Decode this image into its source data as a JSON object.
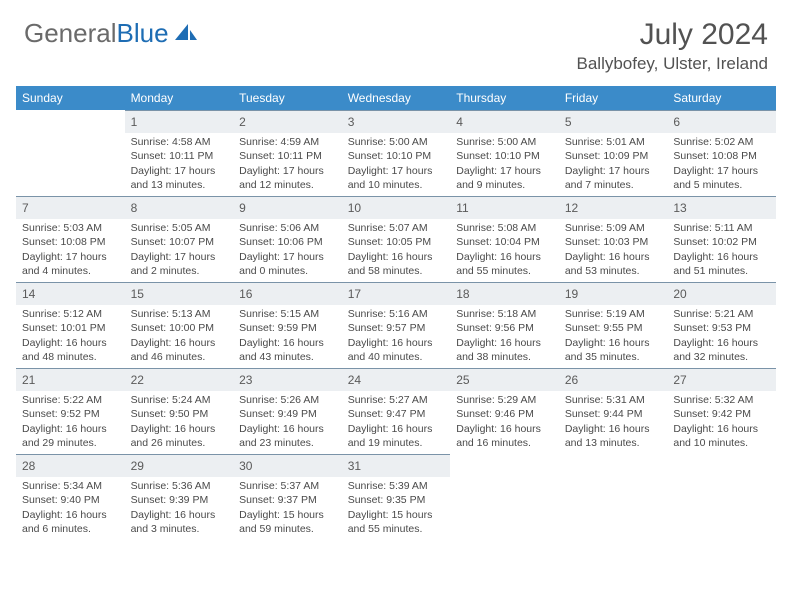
{
  "logo": {
    "part1": "General",
    "part2": "Blue"
  },
  "title": "July 2024",
  "location": "Ballybofey, Ulster, Ireland",
  "colors": {
    "header_bg": "#3b8bc9",
    "header_text": "#ffffff",
    "daynum_bg": "#eceff2",
    "border": "#7a93a8",
    "text": "#4a4a4a",
    "logo_gray": "#6a6a6a",
    "logo_blue": "#1e6db4"
  },
  "typography": {
    "title_size": 30,
    "location_size": 17,
    "weekday_size": 12,
    "daynum_size": 12,
    "body_size": 10.5
  },
  "weekdays": [
    "Sunday",
    "Monday",
    "Tuesday",
    "Wednesday",
    "Thursday",
    "Friday",
    "Saturday"
  ],
  "weeks": [
    [
      null,
      {
        "n": "1",
        "sr": "4:58 AM",
        "ss": "10:11 PM",
        "dl": "17 hours and 13 minutes."
      },
      {
        "n": "2",
        "sr": "4:59 AM",
        "ss": "10:11 PM",
        "dl": "17 hours and 12 minutes."
      },
      {
        "n": "3",
        "sr": "5:00 AM",
        "ss": "10:10 PM",
        "dl": "17 hours and 10 minutes."
      },
      {
        "n": "4",
        "sr": "5:00 AM",
        "ss": "10:10 PM",
        "dl": "17 hours and 9 minutes."
      },
      {
        "n": "5",
        "sr": "5:01 AM",
        "ss": "10:09 PM",
        "dl": "17 hours and 7 minutes."
      },
      {
        "n": "6",
        "sr": "5:02 AM",
        "ss": "10:08 PM",
        "dl": "17 hours and 5 minutes."
      }
    ],
    [
      {
        "n": "7",
        "sr": "5:03 AM",
        "ss": "10:08 PM",
        "dl": "17 hours and 4 minutes."
      },
      {
        "n": "8",
        "sr": "5:05 AM",
        "ss": "10:07 PM",
        "dl": "17 hours and 2 minutes."
      },
      {
        "n": "9",
        "sr": "5:06 AM",
        "ss": "10:06 PM",
        "dl": "17 hours and 0 minutes."
      },
      {
        "n": "10",
        "sr": "5:07 AM",
        "ss": "10:05 PM",
        "dl": "16 hours and 58 minutes."
      },
      {
        "n": "11",
        "sr": "5:08 AM",
        "ss": "10:04 PM",
        "dl": "16 hours and 55 minutes."
      },
      {
        "n": "12",
        "sr": "5:09 AM",
        "ss": "10:03 PM",
        "dl": "16 hours and 53 minutes."
      },
      {
        "n": "13",
        "sr": "5:11 AM",
        "ss": "10:02 PM",
        "dl": "16 hours and 51 minutes."
      }
    ],
    [
      {
        "n": "14",
        "sr": "5:12 AM",
        "ss": "10:01 PM",
        "dl": "16 hours and 48 minutes."
      },
      {
        "n": "15",
        "sr": "5:13 AM",
        "ss": "10:00 PM",
        "dl": "16 hours and 46 minutes."
      },
      {
        "n": "16",
        "sr": "5:15 AM",
        "ss": "9:59 PM",
        "dl": "16 hours and 43 minutes."
      },
      {
        "n": "17",
        "sr": "5:16 AM",
        "ss": "9:57 PM",
        "dl": "16 hours and 40 minutes."
      },
      {
        "n": "18",
        "sr": "5:18 AM",
        "ss": "9:56 PM",
        "dl": "16 hours and 38 minutes."
      },
      {
        "n": "19",
        "sr": "5:19 AM",
        "ss": "9:55 PM",
        "dl": "16 hours and 35 minutes."
      },
      {
        "n": "20",
        "sr": "5:21 AM",
        "ss": "9:53 PM",
        "dl": "16 hours and 32 minutes."
      }
    ],
    [
      {
        "n": "21",
        "sr": "5:22 AM",
        "ss": "9:52 PM",
        "dl": "16 hours and 29 minutes."
      },
      {
        "n": "22",
        "sr": "5:24 AM",
        "ss": "9:50 PM",
        "dl": "16 hours and 26 minutes."
      },
      {
        "n": "23",
        "sr": "5:26 AM",
        "ss": "9:49 PM",
        "dl": "16 hours and 23 minutes."
      },
      {
        "n": "24",
        "sr": "5:27 AM",
        "ss": "9:47 PM",
        "dl": "16 hours and 19 minutes."
      },
      {
        "n": "25",
        "sr": "5:29 AM",
        "ss": "9:46 PM",
        "dl": "16 hours and 16 minutes."
      },
      {
        "n": "26",
        "sr": "5:31 AM",
        "ss": "9:44 PM",
        "dl": "16 hours and 13 minutes."
      },
      {
        "n": "27",
        "sr": "5:32 AM",
        "ss": "9:42 PM",
        "dl": "16 hours and 10 minutes."
      }
    ],
    [
      {
        "n": "28",
        "sr": "5:34 AM",
        "ss": "9:40 PM",
        "dl": "16 hours and 6 minutes."
      },
      {
        "n": "29",
        "sr": "5:36 AM",
        "ss": "9:39 PM",
        "dl": "16 hours and 3 minutes."
      },
      {
        "n": "30",
        "sr": "5:37 AM",
        "ss": "9:37 PM",
        "dl": "15 hours and 59 minutes."
      },
      {
        "n": "31",
        "sr": "5:39 AM",
        "ss": "9:35 PM",
        "dl": "15 hours and 55 minutes."
      },
      null,
      null,
      null
    ]
  ],
  "labels": {
    "sunrise": "Sunrise: ",
    "sunset": "Sunset: ",
    "daylight": "Daylight: "
  }
}
